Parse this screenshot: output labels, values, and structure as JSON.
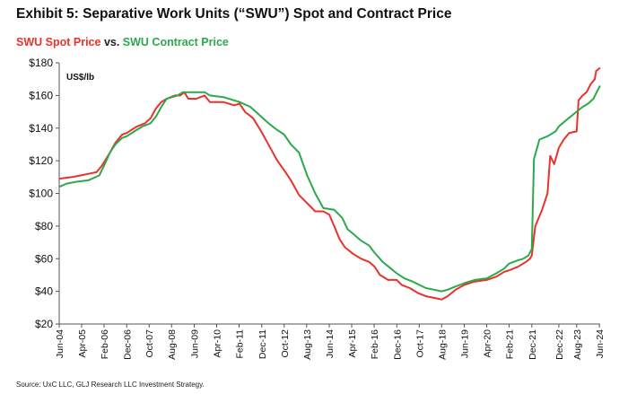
{
  "header": {
    "title": "Exhibit 5: Separative Work Units (“SWU”) Spot and Contract Price",
    "subtitle_spot": "SWU Spot Price",
    "subtitle_vs": " vs. ",
    "subtitle_contract": "SWU Contract Price"
  },
  "footer": {
    "source": "Source: UxC LLC, GLJ Research LLC Investment Strategy."
  },
  "chart_data": {
    "type": "line",
    "unit_label": "US$/lb",
    "ylim": [
      20,
      180
    ],
    "yticks": [
      20,
      40,
      60,
      80,
      100,
      120,
      140,
      160,
      180
    ],
    "ytick_labels": [
      "$20",
      "$40",
      "$60",
      "$80",
      "$100",
      "$120",
      "$140",
      "$160",
      "$180"
    ],
    "xlim": [
      2004.42,
      2024.45
    ],
    "xticks": [
      2004.42,
      2005.25,
      2006.08,
      2006.92,
      2007.75,
      2008.58,
      2009.42,
      2010.25,
      2011.08,
      2011.92,
      2012.75,
      2013.58,
      2014.42,
      2015.25,
      2016.08,
      2016.92,
      2017.75,
      2018.58,
      2019.42,
      2020.25,
      2021.08,
      2021.92,
      2022.92,
      2023.58,
      2024.42
    ],
    "xtick_labels": [
      "Jun-04",
      "Apr-05",
      "Feb-06",
      "Dec-06",
      "Oct-07",
      "Aug-08",
      "Jun-09",
      "Apr-10",
      "Feb-11",
      "Dec-11",
      "Oct-12",
      "Aug-13",
      "Jun-14",
      "Apr-15",
      "Feb-16",
      "Dec-16",
      "Oct-17",
      "Aug-18",
      "Jun-19",
      "Apr-20",
      "Feb-21",
      "Dec-21",
      "Dec-22",
      "Aug-23",
      "Jun-24"
    ],
    "grid": false,
    "legend": "none",
    "series": [
      {
        "name": "SWU Spot Price",
        "color": "#e8322b",
        "points": [
          [
            2004.42,
            109
          ],
          [
            2004.9,
            110
          ],
          [
            2005.2,
            111
          ],
          [
            2005.5,
            112
          ],
          [
            2005.8,
            113
          ],
          [
            2006.0,
            117
          ],
          [
            2006.3,
            125
          ],
          [
            2006.5,
            131
          ],
          [
            2006.75,
            136
          ],
          [
            2006.92,
            137
          ],
          [
            2007.1,
            139
          ],
          [
            2007.3,
            141
          ],
          [
            2007.6,
            143
          ],
          [
            2007.8,
            146
          ],
          [
            2008.0,
            152
          ],
          [
            2008.2,
            156
          ],
          [
            2008.4,
            158
          ],
          [
            2008.7,
            160
          ],
          [
            2008.9,
            160
          ],
          [
            2009.05,
            162
          ],
          [
            2009.2,
            158
          ],
          [
            2009.5,
            158
          ],
          [
            2009.8,
            160
          ],
          [
            2010.0,
            156
          ],
          [
            2010.5,
            156
          ],
          [
            2010.9,
            154
          ],
          [
            2011.1,
            155
          ],
          [
            2011.3,
            150
          ],
          [
            2011.6,
            146
          ],
          [
            2011.9,
            138
          ],
          [
            2012.1,
            132
          ],
          [
            2012.3,
            126
          ],
          [
            2012.5,
            120
          ],
          [
            2012.8,
            113
          ],
          [
            2013.0,
            108
          ],
          [
            2013.3,
            99
          ],
          [
            2013.6,
            94
          ],
          [
            2013.9,
            89
          ],
          [
            2014.2,
            89
          ],
          [
            2014.42,
            87
          ],
          [
            2014.6,
            80
          ],
          [
            2014.8,
            72
          ],
          [
            2015.0,
            67
          ],
          [
            2015.3,
            63
          ],
          [
            2015.6,
            60
          ],
          [
            2015.9,
            58
          ],
          [
            2016.1,
            55
          ],
          [
            2016.3,
            50
          ],
          [
            2016.6,
            47
          ],
          [
            2016.92,
            47
          ],
          [
            2017.1,
            44
          ],
          [
            2017.4,
            42
          ],
          [
            2017.7,
            39
          ],
          [
            2018.0,
            37
          ],
          [
            2018.3,
            36
          ],
          [
            2018.58,
            35
          ],
          [
            2018.8,
            37
          ],
          [
            2019.1,
            41
          ],
          [
            2019.42,
            44
          ],
          [
            2019.8,
            46
          ],
          [
            2020.25,
            47
          ],
          [
            2020.6,
            49
          ],
          [
            2020.9,
            52
          ],
          [
            2021.1,
            53
          ],
          [
            2021.4,
            55
          ],
          [
            2021.7,
            58
          ],
          [
            2021.85,
            60
          ],
          [
            2021.92,
            62
          ],
          [
            2022.05,
            80
          ],
          [
            2022.3,
            90
          ],
          [
            2022.5,
            100
          ],
          [
            2022.6,
            123
          ],
          [
            2022.75,
            118
          ],
          [
            2022.92,
            128
          ],
          [
            2023.1,
            133
          ],
          [
            2023.3,
            137
          ],
          [
            2023.58,
            138
          ],
          [
            2023.65,
            157
          ],
          [
            2023.8,
            160
          ],
          [
            2023.95,
            162
          ],
          [
            2024.1,
            167
          ],
          [
            2024.25,
            170
          ],
          [
            2024.3,
            175
          ],
          [
            2024.45,
            177
          ]
        ]
      },
      {
        "name": "SWU Contract Price",
        "color": "#2ca94a",
        "points": [
          [
            2004.42,
            104
          ],
          [
            2004.7,
            106
          ],
          [
            2005.0,
            107
          ],
          [
            2005.5,
            108
          ],
          [
            2005.9,
            111
          ],
          [
            2006.08,
            117
          ],
          [
            2006.3,
            125
          ],
          [
            2006.5,
            130
          ],
          [
            2006.75,
            134
          ],
          [
            2006.92,
            135
          ],
          [
            2007.2,
            138
          ],
          [
            2007.5,
            141
          ],
          [
            2007.8,
            143
          ],
          [
            2008.0,
            147
          ],
          [
            2008.2,
            153
          ],
          [
            2008.4,
            158
          ],
          [
            2008.8,
            160
          ],
          [
            2009.0,
            162
          ],
          [
            2009.4,
            162
          ],
          [
            2009.8,
            162
          ],
          [
            2010.0,
            160
          ],
          [
            2010.5,
            159
          ],
          [
            2010.9,
            157
          ],
          [
            2011.1,
            156
          ],
          [
            2011.5,
            153
          ],
          [
            2011.9,
            147
          ],
          [
            2012.1,
            144
          ],
          [
            2012.4,
            140
          ],
          [
            2012.75,
            136
          ],
          [
            2013.0,
            130
          ],
          [
            2013.3,
            125
          ],
          [
            2013.6,
            111
          ],
          [
            2013.9,
            100
          ],
          [
            2014.2,
            91
          ],
          [
            2014.6,
            90
          ],
          [
            2014.9,
            85
          ],
          [
            2015.1,
            78
          ],
          [
            2015.25,
            76
          ],
          [
            2015.6,
            71
          ],
          [
            2015.9,
            68
          ],
          [
            2016.08,
            64
          ],
          [
            2016.4,
            58
          ],
          [
            2016.7,
            54
          ],
          [
            2016.92,
            51
          ],
          [
            2017.2,
            48
          ],
          [
            2017.5,
            46
          ],
          [
            2017.75,
            44
          ],
          [
            2018.0,
            42
          ],
          [
            2018.3,
            41
          ],
          [
            2018.58,
            40
          ],
          [
            2018.8,
            41
          ],
          [
            2019.1,
            43
          ],
          [
            2019.42,
            45
          ],
          [
            2019.8,
            47
          ],
          [
            2020.25,
            48
          ],
          [
            2020.6,
            51
          ],
          [
            2020.9,
            54
          ],
          [
            2021.08,
            57
          ],
          [
            2021.4,
            59
          ],
          [
            2021.6,
            60
          ],
          [
            2021.8,
            62
          ],
          [
            2021.92,
            66
          ],
          [
            2022.0,
            121
          ],
          [
            2022.2,
            133
          ],
          [
            2022.5,
            135
          ],
          [
            2022.8,
            138
          ],
          [
            2022.92,
            141
          ],
          [
            2023.2,
            145
          ],
          [
            2023.5,
            149
          ],
          [
            2023.8,
            153
          ],
          [
            2024.0,
            155
          ],
          [
            2024.2,
            158
          ],
          [
            2024.35,
            163
          ],
          [
            2024.45,
            166
          ]
        ]
      }
    ]
  }
}
